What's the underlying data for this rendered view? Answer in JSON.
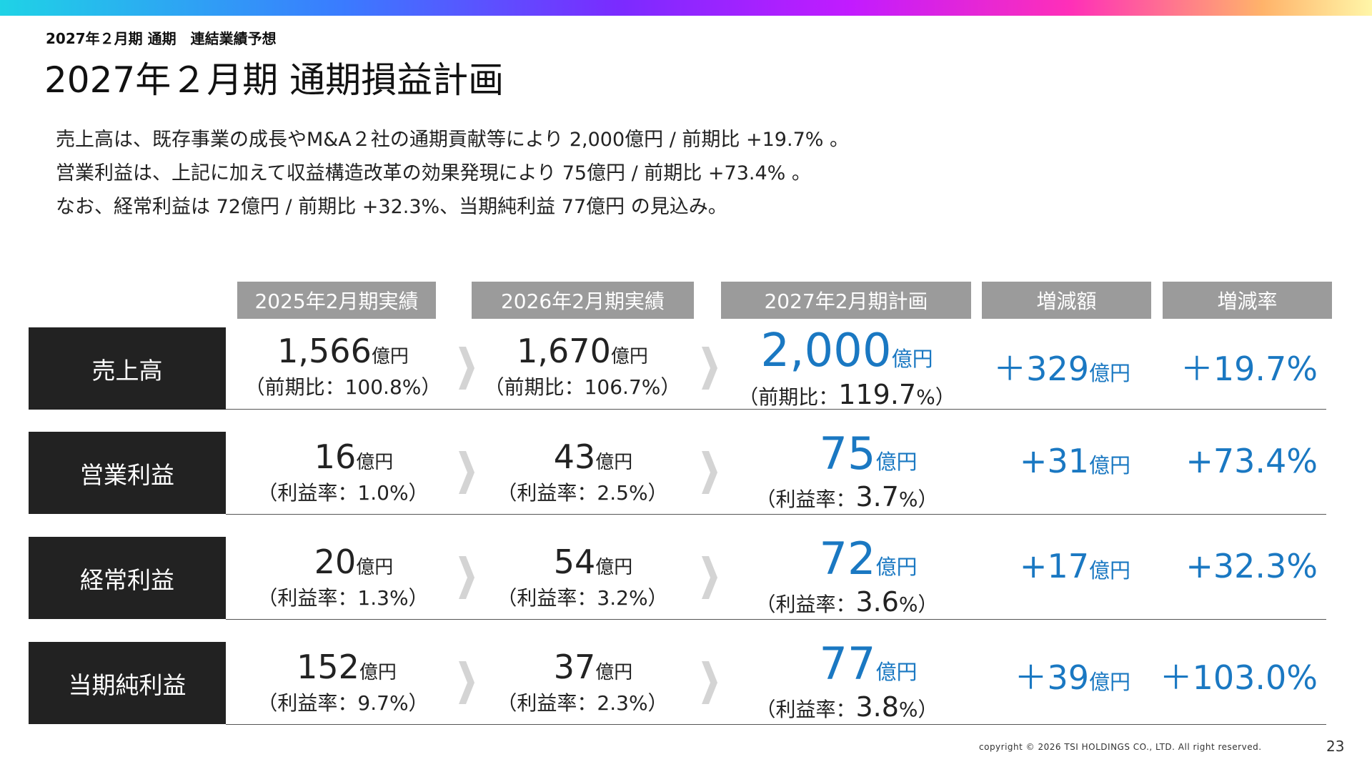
{
  "header": {
    "kicker": "2027年２月期 通期　連結業績予想",
    "title": "2027年２月期 通期損益計画"
  },
  "summary": [
    "売上高は、既存事業の成長やM&A２社の通期貢献等により 2,000億円 / 前期比 +19.7% 。",
    "営業利益は、上記に加えて収益構造改革の効果発現により 75億円 / 前期比 +73.4% 。",
    "なお、経常利益は 72億円 / 前期比 +32.3%、当期純利益 77億円 の見込み。"
  ],
  "columns": [
    "2025年2月期実績",
    "2026年2月期実績",
    "2027年2月期計画",
    "増減額",
    "増減率"
  ],
  "unit": "億円",
  "rows": [
    {
      "label": "売上高",
      "fy2025": {
        "value": "1,566",
        "sub": "（前期比：100.8%）"
      },
      "fy2026": {
        "value": "1,670",
        "sub": "（前期比：106.7%）"
      },
      "fy2027": {
        "value": "2,000",
        "sub_prefix": "（前期比：",
        "sub_value": "119.7",
        "sub_suffix": "%）"
      },
      "delta": "＋329",
      "rate": "＋19.7%"
    },
    {
      "label": "営業利益",
      "fy2025": {
        "value": "16",
        "sub": "（利益率：1.0%）"
      },
      "fy2026": {
        "value": "43",
        "sub": "（利益率：2.5%）"
      },
      "fy2027": {
        "value": "75",
        "sub_prefix": "（利益率：",
        "sub_value": "3.7",
        "sub_suffix": "%）"
      },
      "delta": "+31",
      "rate": "+73.4%"
    },
    {
      "label": "経常利益",
      "fy2025": {
        "value": "20",
        "sub": "（利益率：1.3%）"
      },
      "fy2026": {
        "value": "54",
        "sub": "（利益率：3.2%）"
      },
      "fy2027": {
        "value": "72",
        "sub_prefix": "（利益率：",
        "sub_value": "3.6",
        "sub_suffix": "%）"
      },
      "delta": "+17",
      "rate": "+32.3%"
    },
    {
      "label": "当期純利益",
      "fy2025": {
        "value": "152",
        "sub": "（利益率：9.7%）"
      },
      "fy2026": {
        "value": "37",
        "sub": "（利益率：2.3%）"
      },
      "fy2027": {
        "value": "77",
        "sub_prefix": "（利益率：",
        "sub_value": "3.8",
        "sub_suffix": "%）"
      },
      "delta": "＋39",
      "rate": "＋103.0%"
    }
  ],
  "footer": {
    "copyright": "copyright © 2026 TSI HOLDINGS CO., LTD. All right reserved.",
    "page": "23"
  },
  "colors": {
    "accent_blue": "#1a78c2",
    "header_gray": "#9b9b9b",
    "label_dark": "#222222"
  }
}
